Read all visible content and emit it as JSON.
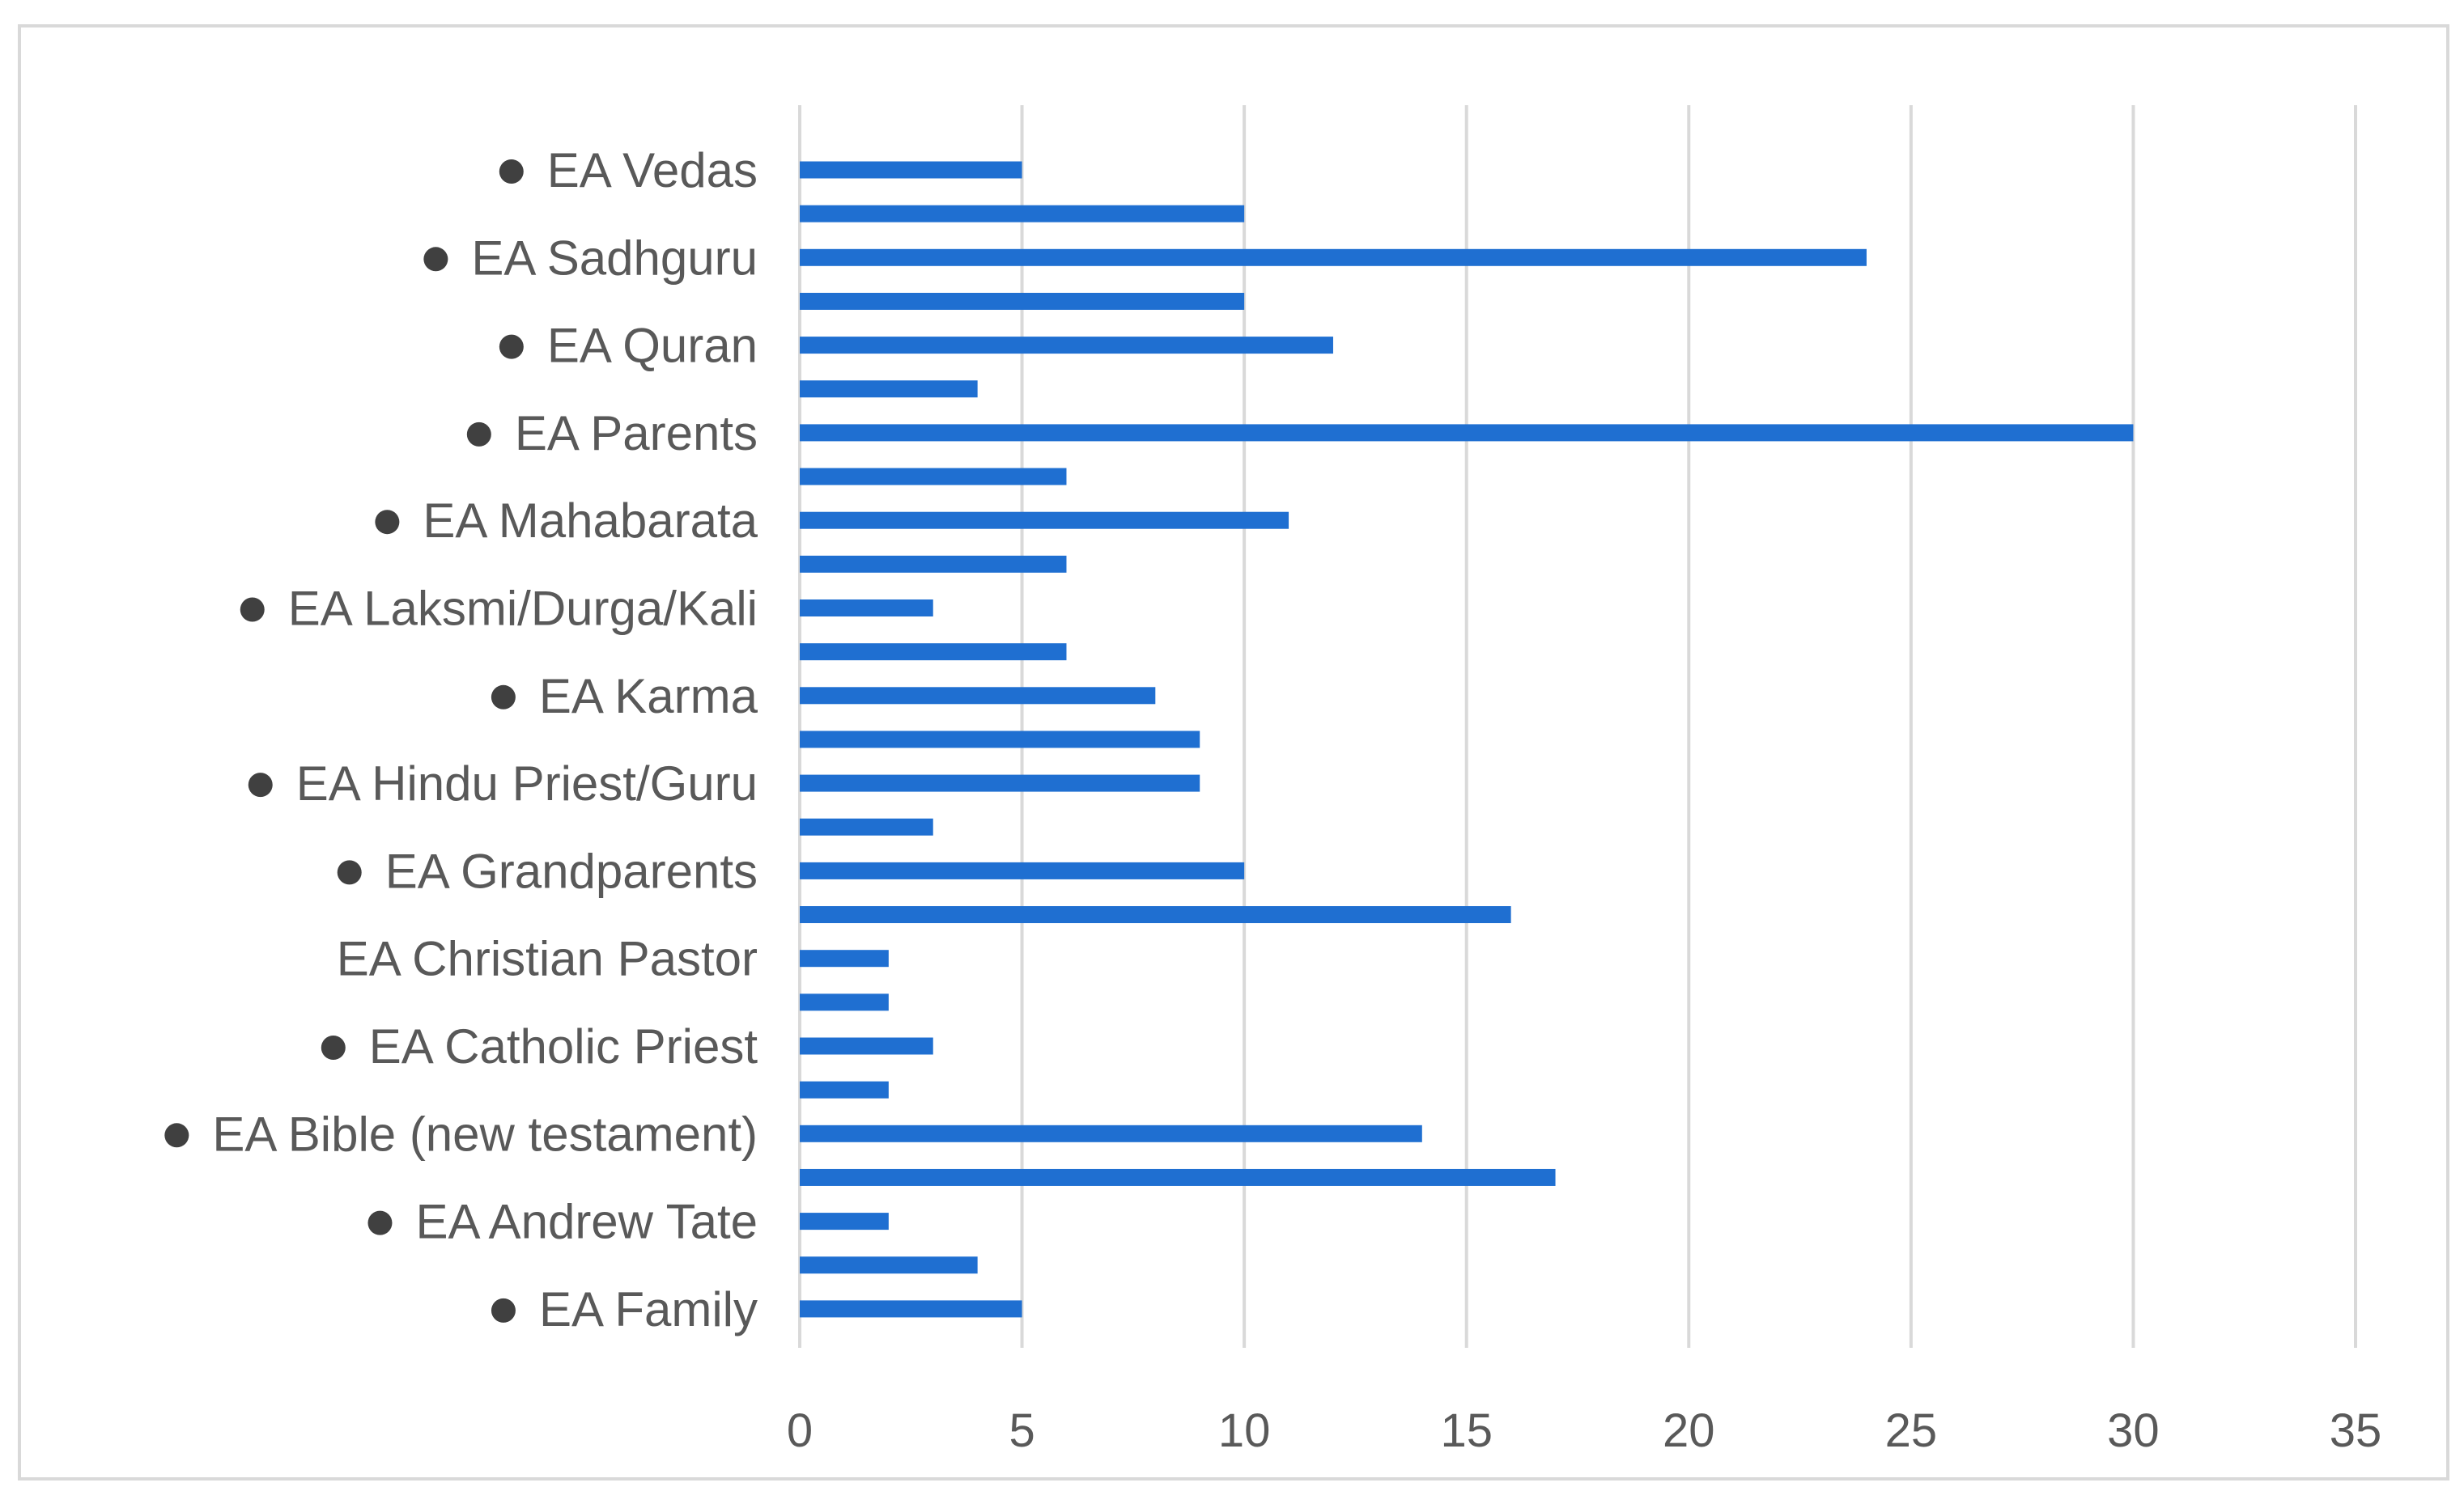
{
  "chart_data": {
    "type": "bar",
    "orientation": "horizontal",
    "title": "",
    "xlabel": "",
    "ylabel": "",
    "xlim": [
      0,
      35
    ],
    "xticks": [
      0,
      5,
      10,
      15,
      20,
      25,
      30,
      35
    ],
    "grid": "vertical",
    "bar_color": "#1f6fd1",
    "categories": [
      "EA Vedas",
      "",
      "EA Sadhguru",
      "",
      "EA Quran",
      "",
      "EA Parents",
      "",
      "EA Mahabarata",
      "",
      "EA Laksmi/Durga/Kali",
      "",
      "EA Karma",
      "",
      "EA Hindu Priest/Guru",
      "",
      "EA Grandparents",
      "",
      "EA Christian Pastor",
      "",
      "EA Catholic Priest",
      "",
      "EA Bible (new testament)",
      "",
      "EA Andrew Tate",
      "",
      "EA  Family"
    ],
    "bulleted": [
      true,
      false,
      true,
      false,
      true,
      false,
      true,
      false,
      true,
      false,
      true,
      false,
      true,
      false,
      true,
      false,
      true,
      false,
      false,
      false,
      true,
      false,
      true,
      false,
      true,
      false,
      true
    ],
    "values": [
      5,
      10,
      24,
      10,
      12,
      4,
      30,
      6,
      11,
      6,
      3,
      6,
      8,
      9,
      9,
      3,
      10,
      16,
      2,
      2,
      3,
      2,
      14,
      17,
      2,
      4,
      5
    ]
  }
}
